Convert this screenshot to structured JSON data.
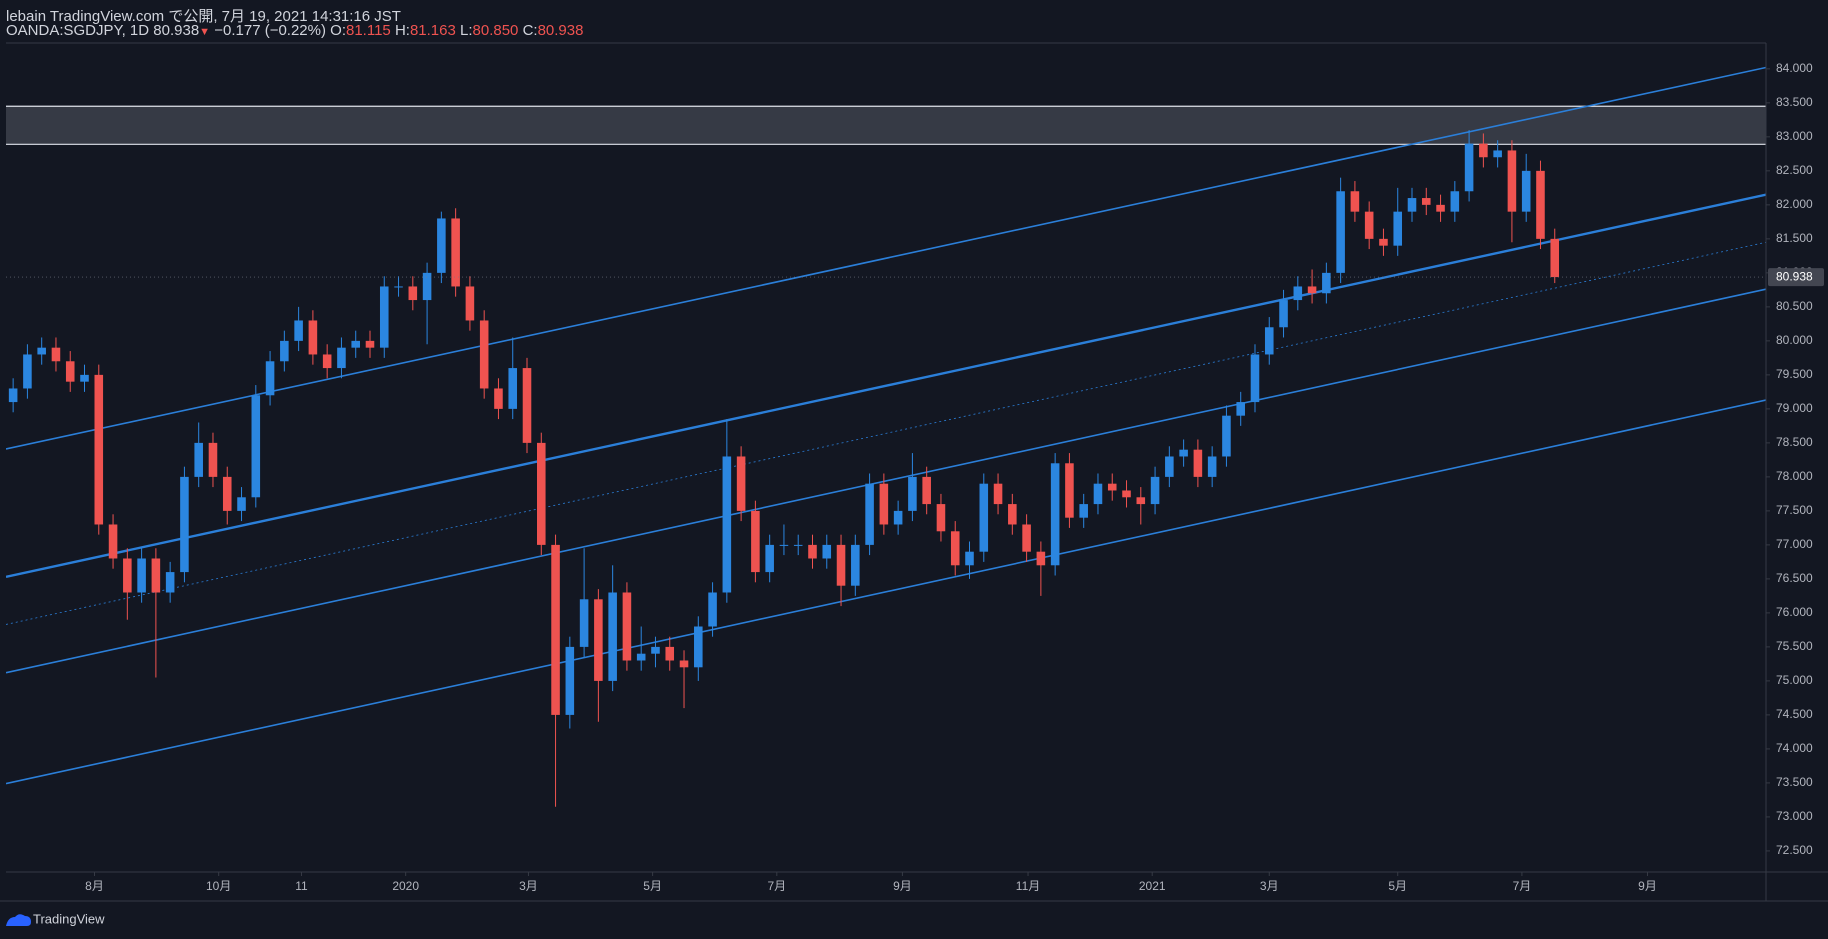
{
  "header": {
    "title": "lebain TradingView.com で公開, 7月 19, 2021 14:31:16 JST",
    "symbol": "OANDA:SGDJPY, 1D",
    "last": "80.938",
    "change": "−0.177 (−0.22%)",
    "o_label": "O:",
    "o": "81.115",
    "h_label": "H:",
    "h": "81.163",
    "l_label": "L:",
    "l": "80.850",
    "c_label": "C:",
    "c": "80.938"
  },
  "footer": {
    "brand": "TradingView"
  },
  "chart_data": {
    "type": "candlestick",
    "up_color": "#2b86e0",
    "down_color": "#ef5350",
    "line_color": "#2b7fd9",
    "grid": false,
    "xlim": [
      0,
      123.3
    ],
    "xticks": [
      {
        "value": 6.2,
        "label": "8月"
      },
      {
        "value": 14.9,
        "label": "10月"
      },
      {
        "value": 20.7,
        "label": "11"
      },
      {
        "value": 28.0,
        "label": "2020"
      },
      {
        "value": 36.6,
        "label": "3月"
      },
      {
        "value": 45.3,
        "label": "5月"
      },
      {
        "value": 54.0,
        "label": "7月"
      },
      {
        "value": 62.8,
        "label": "9月"
      },
      {
        "value": 71.6,
        "label": "11月"
      },
      {
        "value": 80.3,
        "label": "2021"
      },
      {
        "value": 88.5,
        "label": "3月"
      },
      {
        "value": 97.5,
        "label": "5月"
      },
      {
        "value": 106.2,
        "label": "7月"
      },
      {
        "value": 115.0,
        "label": "9月"
      }
    ],
    "ylim": [
      72.19,
      84.38
    ],
    "yticks": [
      {
        "value": 72.5,
        "label": "72.500"
      },
      {
        "value": 73,
        "label": "73.000"
      },
      {
        "value": 73.5,
        "label": "73.500"
      },
      {
        "value": 74,
        "label": "74.000"
      },
      {
        "value": 74.5,
        "label": "74.500"
      },
      {
        "value": 75,
        "label": "75.000"
      },
      {
        "value": 75.5,
        "label": "75.500"
      },
      {
        "value": 76,
        "label": "76.000"
      },
      {
        "value": 76.5,
        "label": "76.500"
      },
      {
        "value": 77,
        "label": "77.000"
      },
      {
        "value": 77.5,
        "label": "77.500"
      },
      {
        "value": 78,
        "label": "78.000"
      },
      {
        "value": 78.5,
        "label": "78.500"
      },
      {
        "value": 79,
        "label": "79.000"
      },
      {
        "value": 79.5,
        "label": "79.500"
      },
      {
        "value": 80,
        "label": "80.000"
      },
      {
        "value": 80.5,
        "label": "80.500"
      },
      {
        "value": 81,
        "label": "81.000"
      },
      {
        "value": 81.5,
        "label": "81.500"
      },
      {
        "value": 82,
        "label": "82.000"
      },
      {
        "value": 82.5,
        "label": "82.500"
      },
      {
        "value": 83,
        "label": "83.000"
      },
      {
        "value": 83.5,
        "label": "83.500"
      },
      {
        "value": 84,
        "label": "84.000"
      }
    ],
    "open": [
      79.1,
      79.3,
      79.8,
      79.9,
      79.7,
      79.4,
      79.5,
      77.3,
      76.8,
      76.3,
      76.8,
      76.3,
      76.6,
      78.0,
      78.5,
      78.0,
      77.5,
      77.7,
      79.2,
      79.7,
      80.0,
      80.3,
      79.8,
      79.6,
      79.9,
      80.0,
      79.9,
      80.8,
      80.8,
      80.6,
      81.0,
      81.8,
      80.8,
      80.3,
      79.3,
      79.0,
      79.6,
      78.5,
      77.0,
      74.5,
      75.5,
      76.2,
      75.0,
      76.3,
      75.3,
      75.4,
      75.5,
      75.3,
      75.2,
      75.8,
      76.3,
      78.3,
      77.5,
      76.6,
      77.0,
      77.0,
      77.0,
      76.8,
      77.0,
      76.4,
      77.0,
      77.9,
      77.3,
      77.5,
      78.0,
      77.6,
      77.2,
      76.7,
      76.9,
      77.9,
      77.6,
      77.3,
      76.9,
      76.7,
      78.2,
      77.4,
      77.6,
      77.9,
      77.8,
      77.7,
      77.6,
      78.0,
      78.3,
      78.4,
      78.0,
      78.3,
      78.9,
      79.1,
      79.8,
      80.2,
      80.6,
      80.8,
      80.7,
      81.0,
      82.2,
      81.9,
      81.5,
      81.4,
      81.9,
      82.1,
      82.0,
      81.9,
      82.2,
      82.9,
      82.7,
      82.8,
      81.9,
      82.5,
      81.5
    ],
    "high": [
      79.45,
      79.95,
      80.05,
      80.05,
      79.85,
      79.65,
      79.65,
      77.45,
      76.95,
      76.95,
      76.95,
      76.75,
      78.15,
      78.8,
      78.65,
      78.15,
      77.85,
      79.35,
      79.85,
      80.15,
      80.5,
      80.45,
      79.95,
      80.05,
      80.15,
      80.15,
      80.95,
      80.95,
      80.95,
      81.15,
      81.9,
      81.95,
      80.95,
      80.45,
      79.45,
      80.05,
      79.75,
      78.65,
      77.15,
      75.65,
      76.95,
      76.35,
      76.7,
      76.45,
      75.8,
      75.65,
      75.65,
      75.45,
      75.95,
      76.45,
      78.85,
      78.45,
      77.65,
      77.15,
      77.3,
      77.15,
      77.15,
      77.15,
      77.15,
      77.15,
      78.05,
      78.05,
      77.65,
      78.35,
      78.15,
      77.75,
      77.35,
      77.05,
      78.05,
      78.05,
      77.75,
      77.45,
      77.05,
      78.35,
      78.35,
      77.75,
      78.05,
      78.05,
      77.95,
      77.85,
      78.15,
      78.45,
      78.55,
      78.55,
      78.45,
      79.05,
      79.25,
      79.95,
      80.35,
      80.75,
      80.95,
      81.05,
      81.15,
      82.4,
      82.35,
      82.05,
      81.65,
      82.25,
      82.25,
      82.25,
      82.15,
      82.35,
      83.1,
      83.05,
      82.95,
      82.95,
      82.75,
      82.65,
      81.65
    ],
    "low": [
      78.95,
      79.15,
      79.65,
      79.55,
      79.25,
      79.25,
      77.15,
      76.65,
      75.9,
      76.15,
      75.05,
      76.15,
      76.45,
      77.85,
      77.85,
      77.3,
      77.35,
      77.55,
      79.05,
      79.55,
      79.85,
      79.65,
      79.45,
      79.45,
      79.75,
      79.75,
      79.75,
      80.65,
      80.45,
      79.95,
      80.85,
      80.65,
      80.15,
      79.15,
      78.85,
      78.85,
      78.35,
      76.85,
      73.15,
      74.3,
      75.35,
      74.4,
      74.85,
      75.15,
      75.15,
      75.2,
      75.15,
      74.6,
      75.0,
      75.65,
      76.15,
      77.35,
      76.45,
      76.45,
      76.85,
      76.85,
      76.65,
      76.65,
      76.1,
      76.25,
      76.85,
      77.15,
      77.15,
      77.35,
      77.45,
      77.05,
      76.55,
      76.5,
      76.75,
      77.45,
      77.15,
      76.75,
      76.25,
      76.55,
      77.25,
      77.25,
      77.45,
      77.65,
      77.55,
      77.3,
      77.45,
      77.85,
      78.15,
      77.85,
      77.85,
      78.15,
      78.75,
      78.95,
      79.65,
      80.05,
      80.45,
      80.55,
      80.55,
      80.85,
      81.75,
      81.35,
      81.25,
      81.25,
      81.75,
      81.85,
      81.75,
      81.75,
      82.05,
      82.55,
      82.55,
      81.45,
      81.75,
      81.35,
      80.85
    ],
    "close": [
      79.3,
      79.8,
      79.9,
      79.7,
      79.4,
      79.5,
      77.3,
      76.8,
      76.3,
      76.8,
      76.3,
      76.6,
      78.0,
      78.5,
      78.0,
      77.5,
      77.7,
      79.2,
      79.7,
      80.0,
      80.3,
      79.8,
      79.6,
      79.9,
      80.0,
      79.9,
      80.8,
      80.8,
      80.6,
      81.0,
      81.8,
      80.8,
      80.3,
      79.3,
      79.0,
      79.6,
      78.5,
      77.0,
      74.5,
      75.5,
      76.2,
      75.0,
      76.3,
      75.3,
      75.4,
      75.5,
      75.3,
      75.2,
      75.8,
      76.3,
      78.3,
      77.5,
      76.6,
      77.0,
      77.0,
      77.0,
      76.8,
      77.0,
      76.4,
      77.0,
      77.9,
      77.3,
      77.5,
      78.0,
      77.6,
      77.2,
      76.7,
      76.9,
      77.9,
      77.6,
      77.3,
      76.9,
      76.7,
      78.2,
      77.4,
      77.6,
      77.9,
      77.8,
      77.7,
      77.6,
      78.0,
      78.3,
      78.4,
      78.0,
      78.3,
      78.9,
      79.1,
      79.8,
      80.2,
      80.6,
      80.8,
      80.7,
      81.0,
      82.2,
      81.9,
      81.5,
      81.4,
      81.9,
      82.1,
      82.0,
      81.9,
      82.2,
      82.9,
      82.7,
      82.8,
      81.9,
      82.5,
      81.5,
      80.938
    ],
    "zone": [
      82.89,
      83.45
    ],
    "channel_lines": [
      {
        "start": 78.41,
        "end": 84.02,
        "style": "solid"
      },
      {
        "start": 76.53,
        "end": 82.15,
        "style": "bold"
      },
      {
        "start": 75.83,
        "end": 81.45,
        "style": "dotted"
      },
      {
        "start": 75.12,
        "end": 80.76,
        "style": "solid"
      },
      {
        "start": 73.49,
        "end": 79.13,
        "style": "solid"
      }
    ]
  }
}
